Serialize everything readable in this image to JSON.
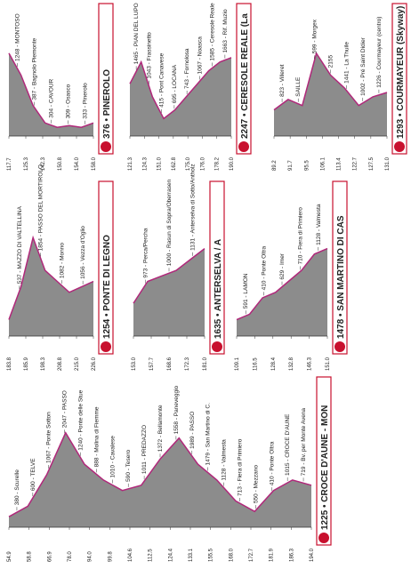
{
  "panels": [
    {
      "finish": "376 • PINEROLO",
      "places": [
        "1248 - MONTOSO",
        "387 - Bagnolo Piemonte",
        "304 - CAVOUR",
        "309 - Osasco",
        "333 - Pinerolo"
      ],
      "km": [
        "117.7",
        "125.3",
        "142.3",
        "150.8",
        "154.0",
        "158.0"
      ]
    },
    {
      "finish": "2247 • CERESOLE REALE (La",
      "places": [
        "1465 - PIAN DEL LUPO",
        "1043 - Frassinetto",
        "415 - Pont Canavese",
        "695 - LOCANA",
        "743 - Fornolosa",
        "1067 - Noasca",
        "1585 - Ceresole Reale",
        "1663 - Rif. Muzio"
      ],
      "km": [
        "121.3",
        "124.3",
        "151.0",
        "162.8",
        "175.0",
        "176.0",
        "178.2",
        "190.0"
      ]
    },
    {
      "finish": "1293 • COURMAYEUR (Skyway)",
      "places": [
        "823 - Villeret",
        "SAILLE",
        "599 - Morgex",
        "2155",
        "1441 - La Thuile",
        "1002 - Pré Saint Didier",
        "1226 - Courmayeur (centro)"
      ],
      "km": [
        "89.2",
        "91.7",
        "95.5",
        "106.1",
        "113.4",
        "122.7",
        "127.5",
        "131.0"
      ]
    },
    {
      "finish": "1254 • PONTE DI LEGNO",
      "places": [
        "537 - MAZZO DI VALTELLINA",
        "1854 - PASSO DEL MORTIROLO",
        "1082 - Monno",
        "1056 - Vezza d'Oglio"
      ],
      "km": [
        "183.8",
        "185.9",
        "198.3",
        "208.8",
        "215.0",
        "226.0"
      ]
    },
    {
      "finish": "1635 • ANTERSELVA / A",
      "places": [
        "973 - Perca/Percha",
        "1000 - Rasun di Sopra/Oberrasen",
        "1131 - Anterselva di Sotto/Antholz"
      ],
      "km": [
        "153.0",
        "157.7",
        "168.6",
        "172.3",
        "181.0"
      ]
    },
    {
      "finish": "1478 • SAN MARTINO DI CAS",
      "places": [
        "591 - LAMON",
        "410 - Ponte Oltra",
        "629 - Imer",
        "710 - Fiera di Primiero",
        "1128 - Valmesta"
      ],
      "km": [
        "109.1",
        "116.5",
        "128.4",
        "132.8",
        "146.3",
        "151.0"
      ]
    },
    {
      "finish": "1225 • CROCE D'AUNE - MON",
      "places": [
        "380 - Scurelle",
        "600 - TELVE",
        "1067 - Ponte Sotton",
        "2047 - PASSO",
        "1240 - Ponte delle Stue",
        "888 - Molina di Fiemme",
        "1010 - Cavalese",
        "590 - Tesero",
        "1011 - PREDAZZO",
        "1372 - Bellamonte",
        "1558 - Paneveggio",
        "1989 - PASSO",
        "1479 - San Martino di C.",
        "1128 - Valmesta",
        "713 - Fiera di Primiero",
        "550 - Mezzano",
        "410 - Ponte Oltra",
        "1015 - CROCE D'AUNE",
        "719 - Bv. per Monte Avena"
      ],
      "km": [
        "54.9",
        "58.8",
        "66.9",
        "78.0",
        "94.0",
        "99.8",
        "104.6",
        "112.5",
        "124.4",
        "133.1",
        "155.5",
        "168.0",
        "172.7",
        "181.9",
        "186.3",
        "194.0"
      ]
    }
  ]
}
